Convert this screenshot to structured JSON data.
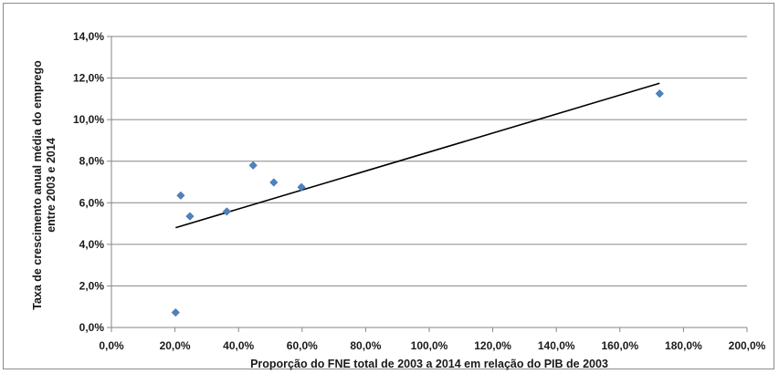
{
  "chart_data": {
    "type": "scatter",
    "title": "",
    "xlabel": "Proporção do FNE total de 2003 a 2014 em relação do PIB de 2003",
    "ylabel_lines": [
      "Taxa de crescimento anual média do emprego",
      "entre 2003 e 2014"
    ],
    "xlim": [
      0,
      200
    ],
    "ylim": [
      0,
      14
    ],
    "x_tick_labels": [
      "0,0%",
      "20,0%",
      "40,0%",
      "60,0%",
      "80,0%",
      "100,0%",
      "120,0%",
      "140,0%",
      "160,0%",
      "180,0%",
      "200,0%"
    ],
    "y_tick_labels": [
      "0,0%",
      "2,0%",
      "4,0%",
      "6,0%",
      "8,0%",
      "10,0%",
      "12,0%",
      "14,0%"
    ],
    "grid": "horizontal",
    "legend": "none",
    "points": [
      {
        "x": 20.2,
        "y": 0.72
      },
      {
        "x": 21.8,
        "y": 6.35
      },
      {
        "x": 24.7,
        "y": 5.35
      },
      {
        "x": 36.3,
        "y": 5.58
      },
      {
        "x": 44.6,
        "y": 7.8
      },
      {
        "x": 51.1,
        "y": 6.98
      },
      {
        "x": 59.8,
        "y": 6.75
      },
      {
        "x": 172.5,
        "y": 11.25
      }
    ],
    "trendline": {
      "x": [
        20.2,
        172.5
      ],
      "y": [
        4.8,
        11.75
      ]
    },
    "colors": {
      "marker": "#4f81bd",
      "trendline": "#000000",
      "grid": "#868686"
    }
  }
}
